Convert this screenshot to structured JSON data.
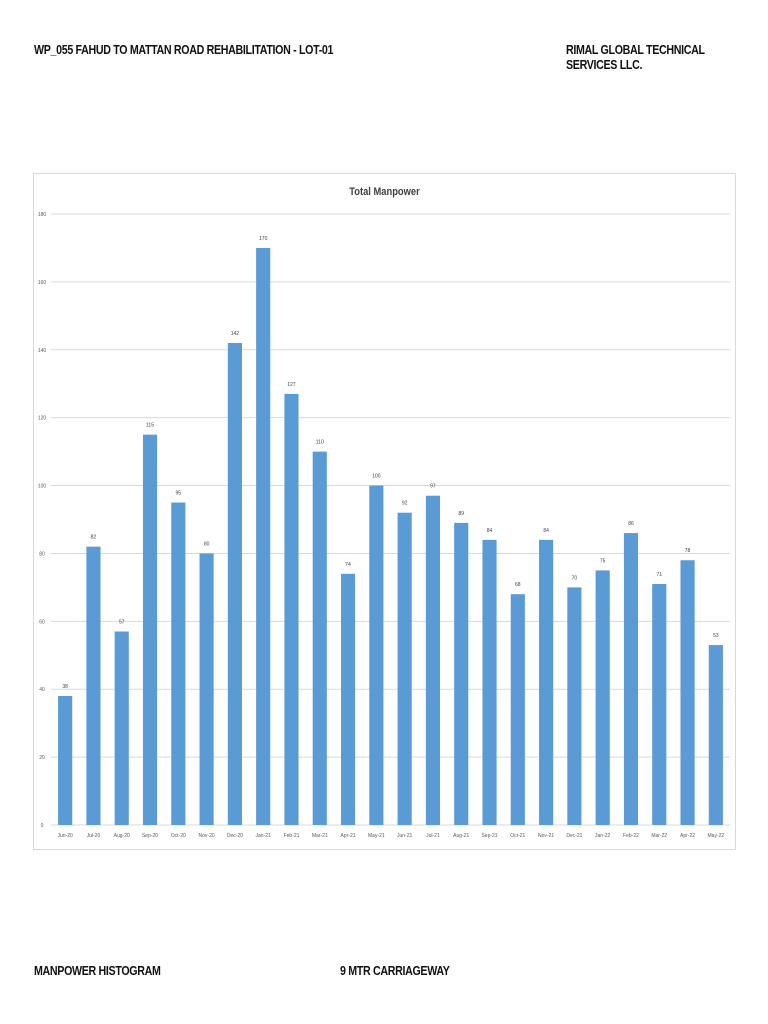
{
  "header": {
    "left": "WP_055 FAHUD TO MATTAN ROAD REHABILITATION - LOT-01",
    "right": "RIMAL GLOBAL TECHNICAL SERVICES LLC."
  },
  "footer": {
    "left": "MANPOWER HISTOGRAM",
    "middle": "9 MTR CARRIAGEWAY"
  },
  "colors": {
    "bar": "#5b9bd5",
    "gridline": "#d9d9d9",
    "border": "#d9d9d9"
  },
  "chart_data": {
    "type": "bar",
    "title": "Total Manpower",
    "xlabel": "",
    "ylabel": "",
    "ylim": [
      0,
      180
    ],
    "yticks": [
      0,
      20,
      40,
      60,
      80,
      100,
      120,
      140,
      160,
      180
    ],
    "grid": true,
    "legend": "none",
    "data_labels": true,
    "categories": [
      "Jun-20",
      "Jul-20",
      "Aug-20",
      "Sep-20",
      "Oct-20",
      "Nov-20",
      "Dec-20",
      "Jan-21",
      "Feb-21",
      "Mar-21",
      "Apr-21",
      "May-21",
      "Jun-21",
      "Jul-21",
      "Aug-21",
      "Sep-21",
      "Oct-21",
      "Nov-21",
      "Dec-21",
      "Jan-22",
      "Feb-22",
      "Mar-22",
      "Apr-22",
      "May-22"
    ],
    "values": [
      38,
      82,
      57,
      115,
      95,
      80,
      142,
      170,
      127,
      110,
      74,
      100,
      92,
      97,
      89,
      84,
      68,
      84,
      70,
      75,
      86,
      71,
      78,
      53
    ]
  }
}
